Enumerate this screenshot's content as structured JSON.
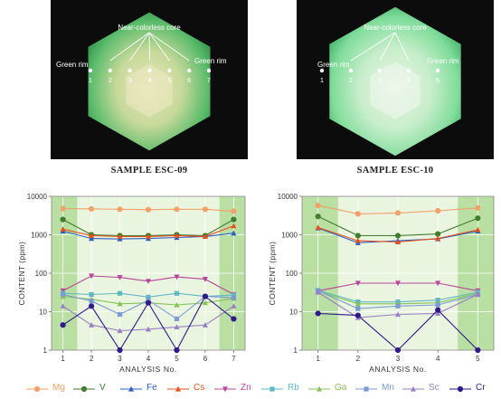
{
  "photos": [
    {
      "core_label": "Near-colorless core",
      "left_rim_label": "Green rim",
      "right_rim_label": "Green rim",
      "point_labels": [
        "1",
        "2",
        "3",
        "4",
        "5",
        "6",
        "7"
      ],
      "sample_title": "SAMPLE ESC-09"
    },
    {
      "core_label": "Near-colorless core",
      "left_rim_label": "Green rim",
      "right_rim_label": "Green rim",
      "point_labels": [
        "1",
        "2",
        "3",
        "4",
        "5"
      ],
      "sample_title": "SAMPLE ESC-10"
    }
  ],
  "colors": {
    "Mg": "#f4a06a",
    "V": "#3f7d2f",
    "Fe": "#2d5fc4",
    "Cs": "#e5501f",
    "Zn": "#b8469c",
    "Rb": "#5fb8c4",
    "Ga": "#86c159",
    "Mn": "#7c9bd6",
    "Sc": "#9b7fc6",
    "Cr": "#301a8a",
    "rim_band": "#b9dfa2",
    "core_band": "#e9f5df"
  },
  "chart_data": [
    {
      "type": "line",
      "xlabel": "ANALYSIS No.",
      "ylabel": "CONTENT (ppm)",
      "y_scale": "log",
      "ylim": [
        1,
        10000
      ],
      "y_ticks": [
        "1",
        "10",
        "100",
        "1000",
        "10000"
      ],
      "x": [
        1,
        2,
        3,
        4,
        5,
        6,
        7
      ],
      "x_ticks": [
        "1",
        "2",
        "3",
        "4",
        "5",
        "6",
        "7"
      ],
      "rim_regions": [
        [
          0.6,
          1.5
        ],
        [
          6.5,
          7.4
        ]
      ],
      "series": [
        {
          "name": "Mg",
          "values": [
            4800,
            4700,
            4600,
            4500,
            4600,
            4600,
            4100
          ]
        },
        {
          "name": "V",
          "values": [
            2500,
            1000,
            950,
            950,
            1000,
            950,
            2500
          ]
        },
        {
          "name": "Fe",
          "values": [
            1250,
            800,
            780,
            800,
            850,
            900,
            1100
          ]
        },
        {
          "name": "Cs",
          "values": [
            1400,
            950,
            900,
            900,
            950,
            900,
            1700
          ]
        },
        {
          "name": "Zn",
          "values": [
            35,
            85,
            78,
            62,
            80,
            70,
            28
          ]
        },
        {
          "name": "Rb",
          "values": [
            30,
            28,
            30,
            24,
            30,
            25,
            27
          ]
        },
        {
          "name": "Ga",
          "values": [
            25,
            21,
            16,
            17,
            15,
            17,
            22
          ]
        },
        {
          "name": "Mn",
          "values": [
            28,
            19,
            8.5,
            20,
            6.5,
            25,
            23
          ]
        },
        {
          "name": "Sc",
          "values": [
            14,
            4.5,
            3.2,
            3.5,
            4,
            4.5,
            14
          ]
        },
        {
          "name": "Cr",
          "values": [
            4.5,
            14,
            1,
            17,
            1,
            25,
            6.5
          ]
        }
      ]
    },
    {
      "type": "line",
      "xlabel": "ANALYSIS No.",
      "ylabel": "CONTENT (ppm)",
      "y_scale": "log",
      "ylim": [
        1,
        10000
      ],
      "y_ticks": [
        "1",
        "10",
        "100",
        "1000",
        "10000"
      ],
      "x": [
        1,
        2,
        3,
        4,
        5
      ],
      "x_ticks": [
        "1",
        "2",
        "3",
        "4",
        "5"
      ],
      "rim_regions": [
        [
          0.6,
          1.5
        ],
        [
          4.5,
          5.4
        ]
      ],
      "series": [
        {
          "name": "Mg",
          "values": [
            5800,
            3500,
            3700,
            4200,
            5000
          ]
        },
        {
          "name": "V",
          "values": [
            3000,
            950,
            950,
            1050,
            2700
          ]
        },
        {
          "name": "Fe",
          "values": [
            1500,
            620,
            700,
            780,
            1250
          ]
        },
        {
          "name": "Cs",
          "values": [
            1550,
            700,
            650,
            800,
            1350
          ]
        },
        {
          "name": "Zn",
          "values": [
            35,
            55,
            55,
            55,
            35
          ]
        },
        {
          "name": "Rb",
          "values": [
            36,
            18,
            18,
            20,
            32
          ]
        },
        {
          "name": "Ga",
          "values": [
            34,
            16,
            16,
            17,
            30
          ]
        },
        {
          "name": "Mn",
          "values": [
            35,
            12,
            14,
            15,
            28
          ]
        },
        {
          "name": "Sc",
          "values": [
            32,
            7,
            8.5,
            9,
            28
          ]
        },
        {
          "name": "Cr",
          "values": [
            9,
            8,
            1,
            11,
            1
          ]
        }
      ]
    }
  ],
  "legend": [
    "Mg",
    "V",
    "Fe",
    "Cs",
    "Zn",
    "Rb",
    "Ga",
    "Mn",
    "Sc",
    "Cr"
  ]
}
